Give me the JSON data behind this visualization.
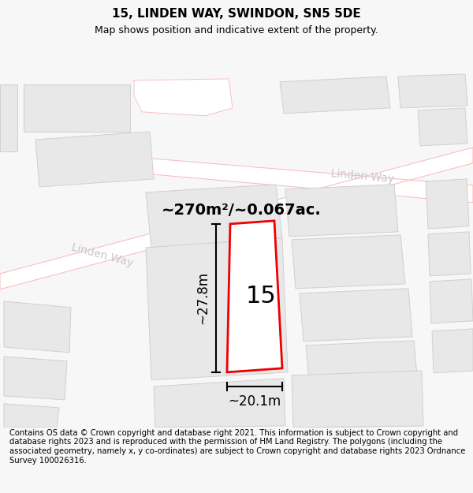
{
  "title": "15, LINDEN WAY, SWINDON, SN5 5DE",
  "subtitle": "Map shows position and indicative extent of the property.",
  "footer": "Contains OS data © Crown copyright and database right 2021. This information is subject to Crown copyright and database rights 2023 and is reproduced with the permission of HM Land Registry. The polygons (including the associated geometry, namely x, y co-ordinates) are subject to Crown copyright and database rights 2023 Ordnance Survey 100026316.",
  "bg_color": "#f7f7f7",
  "map_bg": "#f8f8f8",
  "road_fill": "#ffffff",
  "road_stroke": "#f5c0c0",
  "building_fill": "#e8e8e8",
  "building_stroke": "#d0d0d0",
  "highlight_fill": "#ffffff",
  "highlight_stroke": "#ee0000",
  "highlight_lw": 2.0,
  "area_text": "~270m²/~0.067ac.",
  "label_text": "15",
  "width_label": "~20.1m",
  "height_label": "~27.8m",
  "road_label_color": "#c8c8c8",
  "road_label_1": "Linden Way",
  "road_label_2": "Linden Way",
  "figsize": [
    6.0,
    6.25
  ],
  "dpi": 100,
  "title_fontsize": 11,
  "subtitle_fontsize": 9,
  "footer_fontsize": 7.2,
  "road_label_fontsize": 10,
  "area_text_fontsize": 14,
  "label_fontsize": 22,
  "dim_fontsize": 12
}
